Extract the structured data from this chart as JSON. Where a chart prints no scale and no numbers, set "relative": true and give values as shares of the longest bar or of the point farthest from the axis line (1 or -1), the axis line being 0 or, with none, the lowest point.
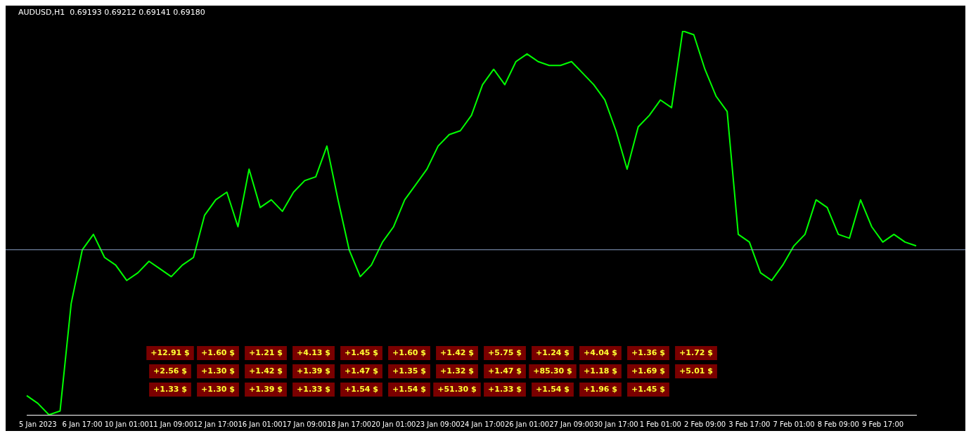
{
  "chart_data": {
    "type": "line",
    "title": "AUDUSD,H1  0.69193 0.69212 0.69141 0.69180",
    "relative": true,
    "grid": false,
    "legend": false,
    "marker": "none",
    "line_style": "solid",
    "categories": [
      null,
      "5 Jan 2023",
      null,
      null,
      null,
      "6 Jan 17:00",
      null,
      null,
      null,
      "10 Jan 01:00",
      null,
      null,
      null,
      "11 Jan 09:00",
      null,
      null,
      null,
      "12 Jan 17:00",
      null,
      null,
      null,
      "16 Jan 01:00",
      null,
      null,
      null,
      "17 Jan 09:00",
      null,
      null,
      null,
      "18 Jan 17:00",
      null,
      null,
      null,
      "20 Jan 01:00",
      null,
      null,
      null,
      "23 Jan 09:00",
      null,
      null,
      null,
      "24 Jan 17:00",
      null,
      null,
      null,
      "26 Jan 01:00",
      null,
      null,
      null,
      "27 Jan 09:00",
      null,
      null,
      null,
      "30 Jan 17:00",
      null,
      null,
      null,
      "1 Feb 01:00",
      null,
      null,
      null,
      "2 Feb 09:00",
      null,
      null,
      null,
      "3 Feb 17:00",
      null,
      null,
      null,
      "7 Feb 01:00",
      null,
      null,
      null,
      "8 Feb 09:00",
      null,
      null,
      null,
      "9 Feb 17:00",
      null,
      null,
      null
    ],
    "series": [
      {
        "color": "#00ff00",
        "values": [
          0.05,
          0.03,
          0,
          0.01,
          0.29,
          0.43,
          0.47,
          0.41,
          0.39,
          0.35,
          0.37,
          0.4,
          0.38,
          0.36,
          0.39,
          0.41,
          0.52,
          0.56,
          0.58,
          0.49,
          0.64,
          0.54,
          0.56,
          0.53,
          0.58,
          0.61,
          0.62,
          0.7,
          0.56,
          0.43,
          0.36,
          0.39,
          0.45,
          0.49,
          0.56,
          0.6,
          0.64,
          0.7,
          0.73,
          0.74,
          0.78,
          0.86,
          0.9,
          0.86,
          0.92,
          0.94,
          0.92,
          0.91,
          0.91,
          0.92,
          0.89,
          0.86,
          0.82,
          0.74,
          0.64,
          0.75,
          0.78,
          0.82,
          0.8,
          1,
          0.99,
          0.9,
          0.83,
          0.79,
          0.47,
          0.45,
          0.37,
          0.35,
          0.39,
          0.44,
          0.47,
          0.56,
          0.54,
          0.47,
          0.46,
          0.56,
          0.49,
          0.45,
          0.47,
          0.45,
          0.44
        ]
      }
    ],
    "ref_lines": [
      {
        "axis": "y",
        "value": 0.43,
        "color": "#8ca0c8"
      }
    ],
    "annotations": [
      "+12.91 $",
      "+1.60 $",
      "+1.21 $",
      "+4.13 $",
      "+1.45 $",
      "+1.60 $",
      "+1.42 $",
      "+5.75 $",
      "+1.24 $",
      "+4.04 $",
      "+1.36 $",
      "+1.72 $",
      "+2.56 $",
      "+1.30 $",
      "+1.42 $",
      "+1.39 $",
      "+1.47 $",
      "+1.35 $",
      "+1.32 $",
      "+1.47 $",
      "+85.30 $",
      "+1.18 $",
      "+1.69 $",
      "+5.01 $",
      "+1.33 $",
      "+1.30 $",
      "+1.39 $",
      "+1.33 $",
      "+1.54 $",
      "+1.54 $",
      "+51.30 $",
      "+1.33 $",
      "+1.54 $",
      "+1.96 $",
      "+1.45 $"
    ]
  }
}
